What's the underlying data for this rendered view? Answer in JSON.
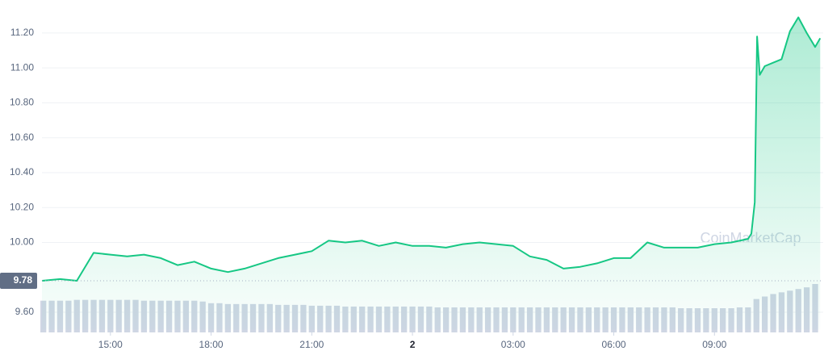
{
  "chart_data": {
    "type": "line",
    "watermark": "CoinMarketCap",
    "x": [
      12.96,
      13.5,
      14,
      14.5,
      15,
      15.5,
      16,
      16.5,
      17,
      17.5,
      18,
      18.5,
      19,
      19.5,
      20,
      20.5,
      21,
      21.5,
      22,
      22.5,
      23,
      23.5,
      24,
      24.5,
      25,
      25.5,
      26,
      26.5,
      27,
      27.5,
      28,
      28.5,
      29,
      29.5,
      30,
      30.5,
      31,
      31.5,
      32,
      32.5,
      33,
      33.5,
      34,
      34.1,
      34.2,
      34.27,
      34.35,
      34.5,
      34.75,
      35,
      35.25,
      35.5,
      35.75,
      36,
      36.15
    ],
    "series": [
      {
        "color": "#16c784",
        "values": [
          9.78,
          9.79,
          9.78,
          9.94,
          9.93,
          9.92,
          9.93,
          9.91,
          9.87,
          9.89,
          9.85,
          9.83,
          9.85,
          9.88,
          9.91,
          9.93,
          9.95,
          10.01,
          10.0,
          10.01,
          9.98,
          10.0,
          9.98,
          9.98,
          9.97,
          9.99,
          10.0,
          9.99,
          9.98,
          9.92,
          9.9,
          9.85,
          9.86,
          9.88,
          9.91,
          9.91,
          10.0,
          9.97,
          9.97,
          9.97,
          9.99,
          10.0,
          10.02,
          10.05,
          10.23,
          11.18,
          10.96,
          11.01,
          11.03,
          11.05,
          11.21,
          11.29,
          11.2,
          11.12,
          11.17
        ]
      }
    ],
    "volume": {
      "color": "#cfd6e4",
      "x": [
        13,
        13.25,
        13.5,
        13.75,
        14,
        14.25,
        14.5,
        14.75,
        15,
        15.25,
        15.5,
        15.75,
        16,
        16.25,
        16.5,
        16.75,
        17,
        17.25,
        17.5,
        17.75,
        18,
        18.25,
        18.5,
        18.75,
        19,
        19.25,
        19.5,
        19.75,
        20,
        20.25,
        20.5,
        20.75,
        21,
        21.25,
        21.5,
        21.75,
        22,
        22.25,
        22.5,
        22.75,
        23,
        23.25,
        23.5,
        23.75,
        24,
        24.25,
        24.5,
        24.75,
        25,
        25.25,
        25.5,
        25.75,
        26,
        26.25,
        26.5,
        26.75,
        27,
        27.25,
        27.5,
        27.75,
        28,
        28.25,
        28.5,
        28.75,
        29,
        29.25,
        29.5,
        29.75,
        30,
        30.25,
        30.5,
        30.75,
        31,
        31.25,
        31.5,
        31.75,
        32,
        32.25,
        32.5,
        32.75,
        33,
        33.25,
        33.5,
        33.75,
        34,
        34.25,
        34.5,
        34.75,
        35,
        35.25,
        35.5,
        35.75,
        36
      ],
      "values": [
        38,
        38,
        38,
        38,
        39,
        39,
        39,
        39,
        39,
        39,
        39,
        39,
        38,
        38,
        38,
        38,
        38,
        38,
        38,
        37,
        35,
        35,
        34,
        34,
        34,
        34,
        34,
        34,
        33,
        33,
        33,
        33,
        32,
        32,
        32,
        32,
        31,
        31,
        31,
        31,
        31,
        31,
        31,
        31,
        31,
        31,
        31,
        30,
        30,
        30,
        30,
        30,
        30,
        30,
        30,
        30,
        30,
        30,
        30,
        30,
        30,
        30,
        30,
        30,
        30,
        30,
        30,
        30,
        30,
        30,
        30,
        30,
        30,
        30,
        30,
        30,
        29,
        29,
        29,
        29,
        29,
        29,
        29,
        30,
        30,
        40,
        43,
        46,
        48,
        50,
        52,
        54,
        58
      ]
    },
    "reference_price": 9.78,
    "xlim": [
      12.96,
      36.24
    ],
    "xticks": [
      {
        "value": 15,
        "label": "15:00"
      },
      {
        "value": 18,
        "label": "18:00"
      },
      {
        "value": 21,
        "label": "21:00"
      },
      {
        "value": 24,
        "label": "2"
      },
      {
        "value": 27,
        "label": "03:00"
      },
      {
        "value": 30,
        "label": "06:00"
      },
      {
        "value": 33,
        "label": "09:00"
      }
    ],
    "ylim": [
      9.5,
      11.38
    ],
    "yticks": [
      {
        "value": 9.6,
        "label": "9.60"
      },
      {
        "value": 10,
        "label": "10.00"
      },
      {
        "value": 10.2,
        "label": "10.20"
      },
      {
        "value": 10.4,
        "label": "10.40"
      },
      {
        "value": 10.6,
        "label": "10.60"
      },
      {
        "value": 10.8,
        "label": "10.80"
      },
      {
        "value": 11,
        "label": "11.00"
      },
      {
        "value": 11.2,
        "label": "11.20"
      }
    ],
    "grid": true
  }
}
